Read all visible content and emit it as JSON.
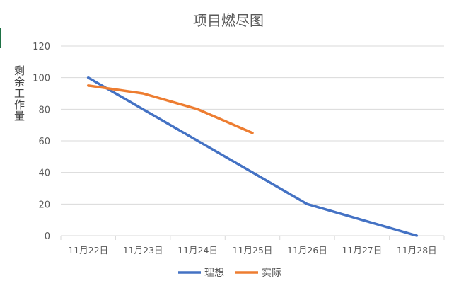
{
  "chart_data": {
    "type": "line",
    "title": "项目燃尽图",
    "xlabel": "",
    "ylabel": "剩余工作量",
    "categories": [
      "11月22日",
      "11月23日",
      "11月24日",
      "11月25日",
      "11月26日",
      "11月27日",
      "11月28日"
    ],
    "ylim": [
      0,
      120
    ],
    "yticks": [
      0,
      20,
      40,
      60,
      80,
      100,
      120
    ],
    "grid": true,
    "legend_position": "bottom",
    "series": [
      {
        "name": "理想",
        "color": "#4472c4",
        "values": [
          100,
          80,
          60,
          40,
          20,
          10,
          0
        ]
      },
      {
        "name": "实际",
        "color": "#ed7d31",
        "values": [
          95,
          90,
          80,
          65,
          null,
          null,
          null
        ]
      }
    ]
  }
}
